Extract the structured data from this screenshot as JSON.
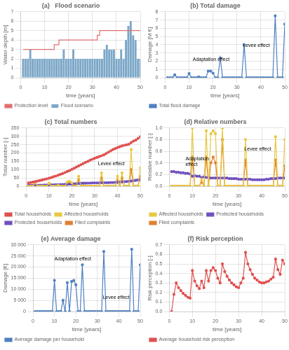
{
  "chart_data": [
    {
      "type": "bar",
      "title": "(a)   Flood scenario",
      "x_label": "time [years]",
      "y_label": "Water depth [m]",
      "x": [
        1,
        2,
        3,
        4,
        5,
        6,
        7,
        8,
        9,
        10,
        11,
        12,
        13,
        14,
        15,
        16,
        17,
        18,
        19,
        20,
        21,
        22,
        23,
        24,
        25,
        26,
        27,
        28,
        29,
        30,
        31,
        32,
        33,
        34,
        35,
        36,
        37,
        38,
        39,
        40,
        41,
        42,
        43,
        44,
        45,
        46,
        47,
        48,
        49,
        50
      ],
      "series": [
        {
          "name": "Flood scenario",
          "type": "bar",
          "color": "#7ba7c8",
          "values": [
            2,
            2,
            2,
            3,
            2,
            2,
            2,
            2,
            2,
            2,
            2,
            2,
            2,
            2,
            2,
            2,
            2,
            3,
            2,
            2,
            2,
            3,
            2,
            2,
            2,
            2,
            2,
            2,
            2,
            2,
            2,
            2,
            2,
            2,
            3,
            3.5,
            3,
            3,
            3,
            2,
            2,
            3,
            2,
            4,
            5.5,
            6,
            4.5,
            4,
            2,
            2
          ]
        },
        {
          "name": "Protection level",
          "type": "step",
          "color": "#e07070",
          "values": [
            3,
            3,
            3,
            3,
            3,
            3,
            3,
            3,
            3,
            3,
            3,
            3,
            3,
            3,
            3.5,
            3.5,
            4,
            4,
            4,
            4,
            4,
            4,
            4,
            4,
            4,
            4,
            4,
            4,
            4,
            4,
            4,
            4,
            4.5,
            5,
            5,
            5,
            5,
            5,
            5,
            5,
            5,
            5,
            5,
            5,
            5,
            5,
            5,
            5,
            5,
            5
          ]
        }
      ],
      "xlim": [
        0,
        50
      ],
      "xticks": [
        0,
        10,
        20,
        30,
        40,
        50
      ],
      "ylim": [
        0,
        7
      ],
      "yticks": [
        0,
        1,
        2,
        3,
        4,
        5,
        6,
        7
      ],
      "grid": true,
      "legend": "bottom"
    },
    {
      "type": "line",
      "title": "(b) Total damage",
      "x_label": "time [years]",
      "y_label": "Damage [M €]",
      "x": [
        1,
        2,
        3,
        4,
        5,
        6,
        7,
        8,
        9,
        10,
        11,
        12,
        13,
        14,
        15,
        16,
        17,
        18,
        19,
        20,
        21,
        22,
        23,
        24,
        25,
        26,
        27,
        28,
        29,
        30,
        31,
        32,
        33,
        34,
        35,
        36,
        37,
        38,
        39,
        40,
        41,
        42,
        43,
        44,
        45,
        46,
        47,
        48,
        49,
        50
      ],
      "series": [
        {
          "name": "Total flood damage",
          "color": "#5080c0",
          "marker": "circle",
          "values": [
            0,
            0,
            0,
            0.35,
            0,
            0,
            0,
            0,
            0,
            0.5,
            0,
            0,
            0,
            0.1,
            0,
            0,
            0,
            0.8,
            0.8,
            0.55,
            0,
            0,
            2.4,
            0,
            0,
            0,
            0,
            0,
            0,
            0,
            0,
            0,
            4.0,
            0,
            0,
            0,
            0,
            0,
            0,
            0,
            0,
            0,
            0,
            0,
            0,
            7.5,
            0,
            0,
            0,
            6.5
          ]
        }
      ],
      "xlim": [
        0,
        50
      ],
      "xticks": [
        0,
        10,
        20,
        30,
        40,
        50
      ],
      "ylim": [
        0,
        8
      ],
      "yticks": [
        0,
        1,
        2,
        3,
        4,
        5,
        6,
        7,
        8
      ],
      "annotations": [
        {
          "text": "Adaptation effect",
          "x": 11.5,
          "y": 2.0
        },
        {
          "text": "Levee effect",
          "x": 32.5,
          "y": 3.7
        }
      ],
      "grid": true,
      "legend": "bottom"
    },
    {
      "type": "line",
      "title": "(c) Total numbers",
      "x_label": "time [years]",
      "y_label": "Total number [-]",
      "x": [
        1,
        2,
        3,
        4,
        5,
        6,
        7,
        8,
        9,
        10,
        11,
        12,
        13,
        14,
        15,
        16,
        17,
        18,
        19,
        20,
        21,
        22,
        23,
        24,
        25,
        26,
        27,
        28,
        29,
        30,
        31,
        32,
        33,
        34,
        35,
        36,
        37,
        38,
        39,
        40,
        41,
        42,
        43,
        44,
        45,
        46,
        47,
        48,
        49,
        50
      ],
      "series": [
        {
          "name": "Total households",
          "color": "#e05050",
          "marker": "circle",
          "values": [
            20,
            22,
            25,
            28,
            31,
            34,
            37,
            41,
            44,
            48,
            52,
            57,
            61,
            66,
            71,
            76,
            82,
            88,
            94,
            101,
            108,
            115,
            122,
            129,
            136,
            143,
            149,
            156,
            162,
            168,
            173,
            178,
            183,
            188,
            196,
            204,
            212,
            220,
            226,
            232,
            237,
            242,
            246,
            249,
            252,
            262,
            271,
            277,
            287,
            297
          ]
        },
        {
          "name": "Affected households",
          "color": "#e8c840",
          "marker": "circle",
          "values": [
            0,
            0,
            0,
            20,
            0,
            0,
            0,
            0,
            0,
            18,
            0,
            0,
            0,
            5,
            0,
            0,
            0,
            25,
            30,
            20,
            0,
            0,
            60,
            0,
            0,
            0,
            0,
            0,
            0,
            0,
            0,
            0,
            80,
            0,
            0,
            0,
            0,
            0,
            0,
            60,
            0,
            80,
            0,
            0,
            0,
            220,
            0,
            0,
            0,
            110
          ]
        },
        {
          "name": "Protected households",
          "color": "#7050c0",
          "marker": "circle",
          "values": [
            5,
            5,
            5,
            5,
            5,
            6,
            6,
            7,
            7,
            7,
            8,
            8,
            9,
            9,
            10,
            10,
            11,
            11,
            12,
            13,
            14,
            15,
            16,
            17,
            18,
            18,
            19,
            19,
            20,
            20,
            20,
            20,
            21,
            21,
            21,
            21,
            22,
            22,
            23,
            24,
            25,
            26,
            27,
            28,
            29,
            31,
            33,
            35,
            37,
            39
          ]
        },
        {
          "name": "Filed complaints",
          "color": "#e08030",
          "marker": "circle",
          "values": [
            0,
            0,
            0,
            12,
            0,
            0,
            0,
            0,
            0,
            10,
            0,
            0,
            0,
            3,
            0,
            0,
            0,
            15,
            18,
            12,
            0,
            0,
            40,
            0,
            0,
            0,
            0,
            0,
            0,
            0,
            0,
            0,
            50,
            0,
            0,
            0,
            0,
            0,
            0,
            35,
            0,
            50,
            0,
            0,
            0,
            100,
            0,
            0,
            0,
            60
          ]
        }
      ],
      "xlim": [
        0,
        50
      ],
      "xticks": [
        0,
        10,
        20,
        30,
        40,
        50
      ],
      "ylim": [
        0,
        350
      ],
      "yticks": [
        0,
        50,
        100,
        150,
        200,
        250,
        300,
        350
      ],
      "annotations": [
        {
          "text": "Levee effect",
          "x": 31.5,
          "y": 127
        }
      ],
      "grid": true,
      "legend": "bottom"
    },
    {
      "type": "line",
      "title": "(d) Relative numbers",
      "x_label": "time [years]",
      "y_label": "Relative number [-]",
      "x": [
        1,
        2,
        3,
        4,
        5,
        6,
        7,
        8,
        9,
        10,
        11,
        12,
        13,
        14,
        15,
        16,
        17,
        18,
        19,
        20,
        21,
        22,
        23,
        24,
        25,
        26,
        27,
        28,
        29,
        30,
        31,
        32,
        33,
        34,
        35,
        36,
        37,
        38,
        39,
        40,
        41,
        42,
        43,
        44,
        45,
        46,
        47,
        48,
        49,
        50
      ],
      "series": [
        {
          "name": "Affected households",
          "color": "#e8c840",
          "marker": "circle",
          "values": [
            0,
            0,
            0,
            0,
            0,
            0,
            0,
            0,
            0,
            1,
            0,
            0,
            0,
            0.12,
            0,
            0.95,
            0,
            0.9,
            0.95,
            0.9,
            0,
            0,
            1,
            0,
            0,
            0,
            0,
            0,
            0,
            0,
            0,
            0,
            0.8,
            0,
            0,
            0,
            0,
            0,
            0,
            0,
            0,
            0,
            0,
            0,
            0,
            0.85,
            0,
            0,
            0,
            0.8
          ]
        },
        {
          "name": "Protected households",
          "color": "#7050c0",
          "marker": "circle",
          "values": [
            0.25,
            0.25,
            0.24,
            0.24,
            0.23,
            0.23,
            0.22,
            0.22,
            0.21,
            0.17,
            0.18,
            0.17,
            0.17,
            0.15,
            0.16,
            0.15,
            0.15,
            0.14,
            0.14,
            0.14,
            0.14,
            0.14,
            0.14,
            0.14,
            0.14,
            0.13,
            0.13,
            0.13,
            0.13,
            0.12,
            0.12,
            0.12,
            0.12,
            0.12,
            0.12,
            0.11,
            0.11,
            0.11,
            0.11,
            0.11,
            0.11,
            0.12,
            0.12,
            0.13,
            0.13,
            0.13,
            0.14,
            0.14,
            0.14,
            0.14
          ]
        },
        {
          "name": "Filed complaints",
          "color": "#e08030",
          "marker": "circle",
          "values": [
            0,
            0,
            0,
            0,
            0,
            0,
            0,
            0,
            0,
            0.5,
            0,
            0,
            0,
            0.07,
            0,
            0.5,
            0,
            0.4,
            0.5,
            0.4,
            0,
            0,
            0.8,
            0,
            0,
            0,
            0,
            0,
            0,
            0,
            0,
            0,
            0.45,
            0,
            0,
            0,
            0,
            0,
            0,
            0,
            0,
            0,
            0,
            0,
            0,
            0.45,
            0,
            0,
            0,
            0.35
          ]
        }
      ],
      "xlim": [
        0,
        50
      ],
      "xticks": [
        0,
        10,
        20,
        30,
        40,
        50
      ],
      "ylim": [
        0,
        1.0
      ],
      "yticks": [
        {
          "value": 0,
          "label": "0.0"
        },
        0.2,
        0.4,
        0.6,
        0.8,
        {
          "value": 1.0,
          "label": "1.0"
        }
      ],
      "annotations": [
        {
          "text": "Adaptation\neffect",
          "x": 7,
          "y": 0.35
        },
        {
          "text": "Levee effect",
          "x": 32.5,
          "y": 0.61
        }
      ],
      "grid": true,
      "legend": "bottom"
    },
    {
      "type": "line",
      "title": "(e) Average damage",
      "x_label": "time [years]",
      "y_label": "Damage [€]",
      "x": [
        1,
        2,
        3,
        4,
        5,
        6,
        7,
        8,
        9,
        10,
        11,
        12,
        13,
        14,
        15,
        16,
        17,
        18,
        19,
        20,
        21,
        22,
        23,
        24,
        25,
        26,
        27,
        28,
        29,
        30,
        31,
        32,
        33,
        34,
        35,
        36,
        37,
        38,
        39,
        40,
        41,
        42,
        43,
        44,
        45,
        46,
        47,
        48,
        49,
        50
      ],
      "series": [
        {
          "name": "Average damage per household",
          "color": "#5080c0",
          "marker": "circle",
          "values": [
            0,
            0,
            0,
            0,
            0,
            0,
            0,
            0,
            0,
            14000,
            0,
            0,
            0,
            5000,
            0,
            13000,
            0,
            13500,
            14000,
            12000,
            0,
            0,
            21000,
            0,
            0,
            0,
            0,
            0,
            0,
            0,
            0,
            0,
            27000,
            0,
            0,
            0,
            0,
            0,
            0,
            0,
            0,
            0,
            0,
            0,
            0,
            28000,
            0,
            0,
            0,
            21000
          ]
        }
      ],
      "xlim": [
        0,
        50
      ],
      "xticks": [
        0,
        10,
        20,
        30,
        40,
        50
      ],
      "ylim": [
        0,
        30000
      ],
      "yticks": [
        0,
        {
          "value": 5000,
          "label": "5 000"
        },
        {
          "value": 10000,
          "label": "10 000"
        },
        {
          "value": 15000,
          "label": "15 000"
        },
        {
          "value": 20000,
          "label": "20 000"
        },
        {
          "value": 25000,
          "label": "25 000"
        },
        {
          "value": 30000,
          "label": "30 000"
        }
      ],
      "annotations": [
        {
          "text": "Adaptation effect",
          "x": 10,
          "y": 23000
        },
        {
          "text": "Levee effect",
          "x": 32.5,
          "y": 5800
        }
      ],
      "grid": true,
      "legend": "bottom"
    },
    {
      "type": "line",
      "title": "(f) Risk perception",
      "x_label": "time [years]",
      "y_label": "Risk perception [-]",
      "x": [
        1,
        2,
        3,
        4,
        5,
        6,
        7,
        8,
        9,
        10,
        11,
        12,
        13,
        14,
        15,
        16,
        17,
        18,
        19,
        20,
        21,
        22,
        23,
        24,
        25,
        26,
        27,
        28,
        29,
        30,
        31,
        32,
        33,
        34,
        35,
        36,
        37,
        38,
        39,
        40,
        41,
        42,
        43,
        44,
        45,
        46,
        47,
        48,
        49,
        50
      ],
      "series": [
        {
          "name": "Average household risk perception",
          "color": "#e05050",
          "marker": "circle",
          "values": [
            0,
            0.18,
            0.3,
            0.25,
            0.22,
            0.19,
            0.17,
            0.15,
            0.14,
            0.43,
            0.32,
            0.27,
            0.24,
            0.32,
            0.25,
            0.43,
            0.32,
            0.43,
            0.46,
            0.43,
            0.35,
            0.3,
            0.5,
            0.42,
            0.37,
            0.33,
            0.3,
            0.28,
            0.26,
            0.25,
            0.3,
            0.35,
            0.62,
            0.5,
            0.44,
            0.39,
            0.35,
            0.33,
            0.31,
            0.3,
            0.3,
            0.31,
            0.32,
            0.34,
            0.36,
            0.55,
            0.44,
            0.39,
            0.54,
            0.5
          ]
        }
      ],
      "xlim": [
        0,
        50
      ],
      "xticks": [
        0,
        10,
        20,
        30,
        40,
        50
      ],
      "ylim": [
        0,
        0.7
      ],
      "yticks": [
        {
          "value": 0,
          "label": "0.0"
        },
        0.1,
        0.2,
        0.3,
        0.4,
        0.5,
        0.6,
        0.7
      ],
      "grid": true,
      "legend": "bottom"
    }
  ]
}
